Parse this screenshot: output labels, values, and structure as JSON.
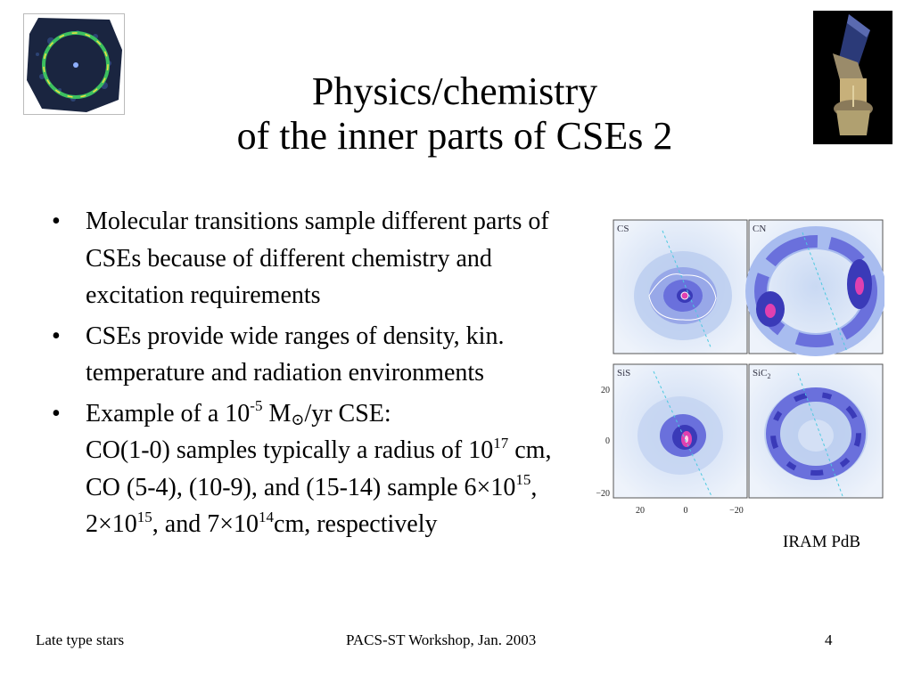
{
  "slide": {
    "title_line1": "Physics/chemistry",
    "title_line2": "of the inner parts of CSEs 2",
    "bullet_symbol": "•",
    "bullet1": "Molecular transitions sample different parts of CSEs because of different chemistry and excitation requirements",
    "bullet2": "CSEs provide wide ranges of density, kin. temperature and radiation environments",
    "bullet3": {
      "t1": "Example of a 10",
      "exp1": "-5",
      "t2": " M",
      "sun": "⊙",
      "t3": "/yr CSE:",
      "t4": "CO(1-0) samples typically a radius of 10",
      "exp2": "17",
      "t5": " cm, CO (5-4), (10-9), and  (15-14) sample 6×10",
      "exp3": "15",
      "t6": ", 2×10",
      "exp4": "15",
      "t7": ", and 7×10",
      "exp5": "14",
      "t8": "cm, respectively"
    }
  },
  "figure": {
    "panels": {
      "cs": "CS",
      "cn": "CN",
      "sis": "SiS",
      "sic2_base": "SiC",
      "sic2_sub": "2"
    },
    "yticks": [
      "20",
      "0",
      "−20"
    ],
    "xticks": [
      "20",
      "0",
      "−20"
    ],
    "caption": "IRAM PdB"
  },
  "footer": {
    "left": "Late type stars",
    "center": "PACS-ST Workshop, Jan. 2003",
    "page": "4"
  },
  "colors": {
    "map_light": "#dfe9f8",
    "map_mid": "#6f6fe0",
    "map_dark": "#3030b0",
    "map_peak": "#e040b0"
  }
}
